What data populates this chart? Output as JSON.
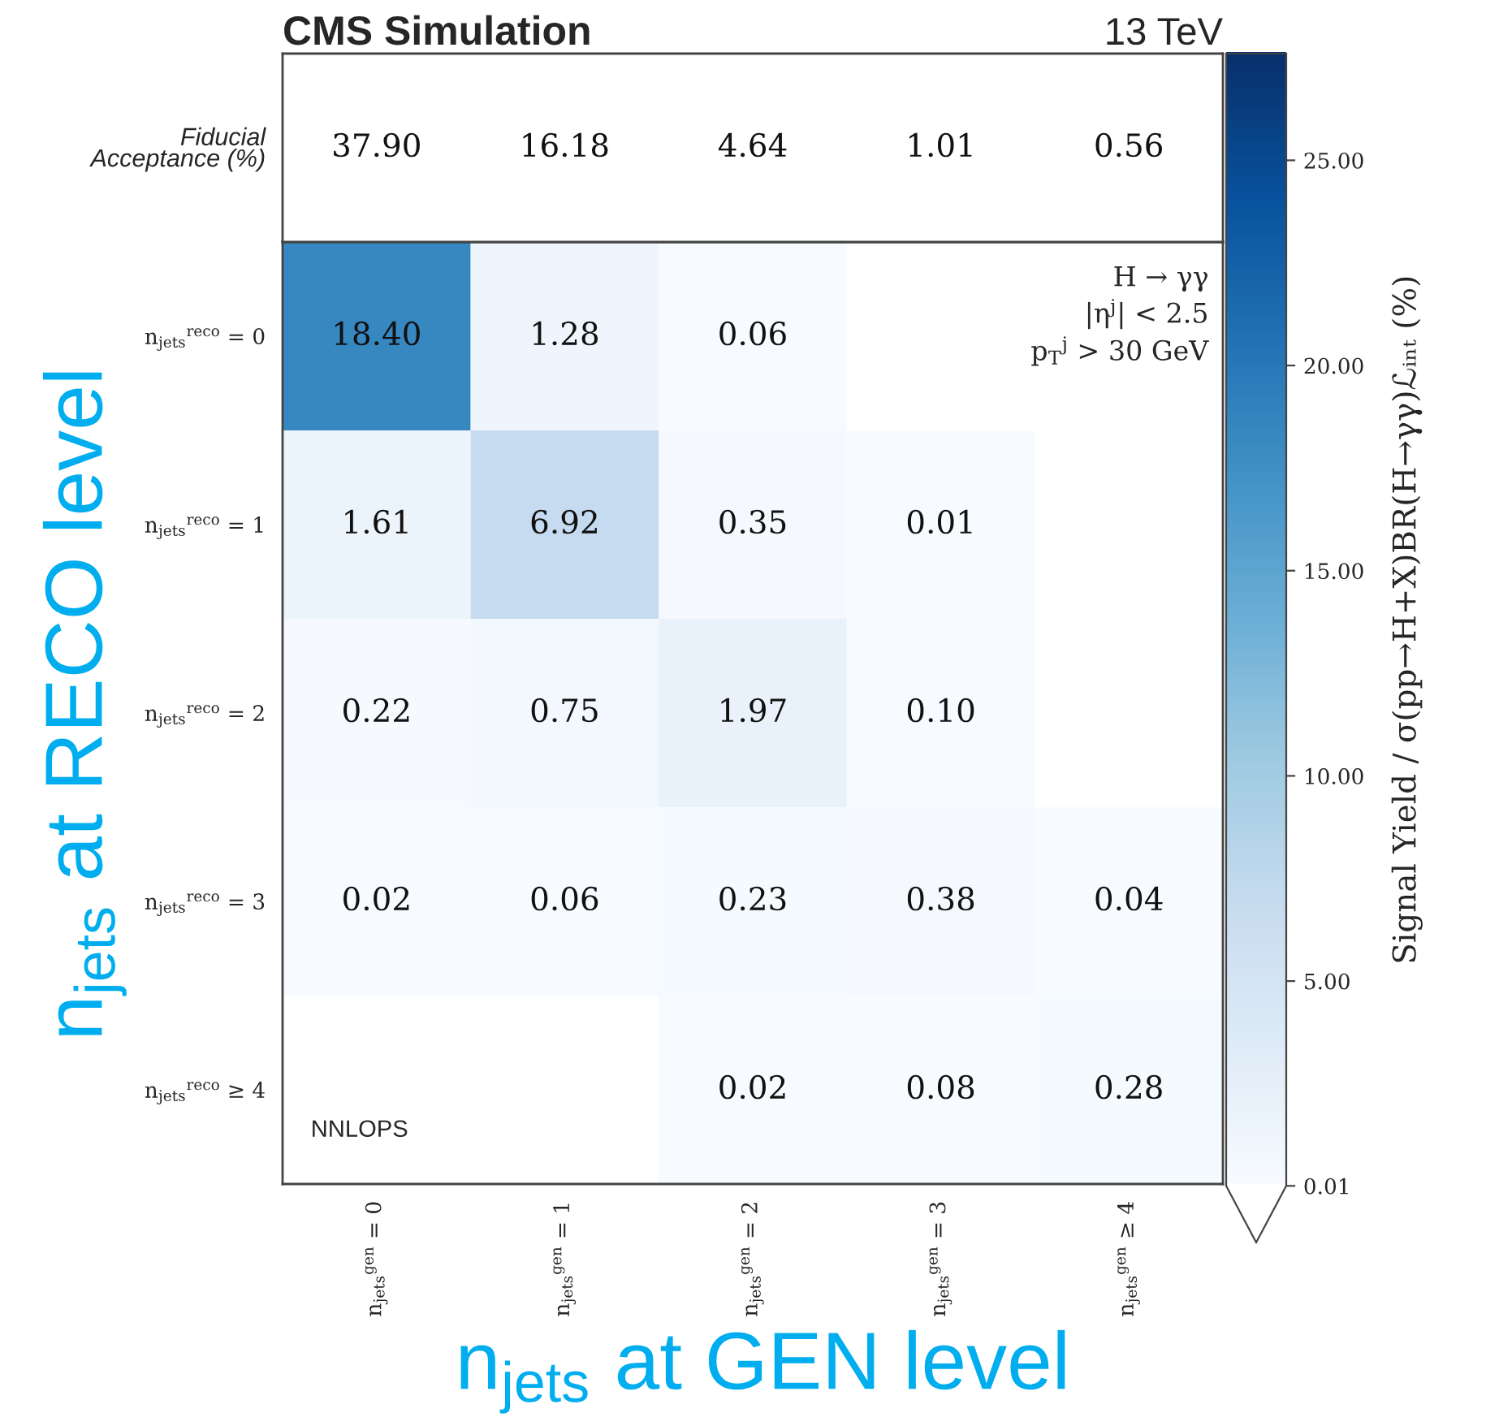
{
  "chart_data": {
    "type": "heatmap",
    "title": "CMS Simulation",
    "subtitle": "13 TeV",
    "xlabel": "n$_{jets}$ at GEN level",
    "ylabel": "n$_{jets}$ at RECO level",
    "clabel": "Signal Yield / σ(pp→H+X)BR(H→γγ)ℒᵢₙₜ (%)",
    "categories": [
      "n$_{jets}$$^{gen}$ = 0",
      "n$_{jets}$$^{gen}$ = 1",
      "n$_{jets}$$^{gen}$ = 2",
      "n$_{jets}$$^{gen}$ = 3",
      "n$_{jets}$$^{gen}$ ≥ 4"
    ],
    "y_categories": [
      "n$_{jets}$$^{reco}$ = 0",
      "n$_{jets}$$^{reco}$ = 1",
      "n$_{jets}$$^{reco}$ = 2",
      "n$_{jets}$$^{reco}$ = 3",
      "n$_{jets}$$^{reco}$ ≥ 4"
    ],
    "cells": [
      [
        18.4,
        1.28,
        0.06,
        null,
        null
      ],
      [
        1.61,
        6.92,
        0.35,
        0.01,
        null
      ],
      [
        0.22,
        0.75,
        1.97,
        0.1,
        null
      ],
      [
        0.02,
        0.06,
        0.23,
        0.38,
        0.04
      ],
      [
        null,
        null,
        0.02,
        0.08,
        0.28
      ]
    ],
    "cell_labels": [
      [
        "18.40",
        "1.28",
        "0.06",
        null,
        null
      ],
      [
        "1.61",
        "6.92",
        "0.35",
        "0.01",
        null
      ],
      [
        "0.22",
        "0.75",
        "1.97",
        "0.10",
        null
      ],
      [
        "0.02",
        "0.06",
        "0.23",
        "0.38",
        "0.04"
      ],
      [
        null,
        null,
        "0.02",
        "0.08",
        "0.28"
      ]
    ],
    "clim": [
      0.01,
      27.6
    ],
    "cticks": [
      0.01,
      {
        "value": 5,
        "label": "5.00"
      },
      {
        "value": 10,
        "label": "10.00"
      },
      {
        "value": 15,
        "label": "15.00"
      },
      {
        "value": 20,
        "label": "20.00"
      },
      {
        "value": 25,
        "label": "25.00"
      }
    ],
    "colors": [
      "#f7fbff",
      "#deebf7",
      "#c6dbef",
      "#9ecae1",
      "#6baed6",
      "#4292c6",
      "#2171b5",
      "#08519c",
      "#08306b"
    ],
    "annotations": [
      "37.90",
      "16.18",
      "4.64",
      "1.01",
      "0.56",
      "Fiducial\nAcceptance (%)",
      "H → γγ\n|η$^{j}$| < 2.5\np$_{T}$$^{j}$ > 30 GeV",
      "NNLOPS"
    ]
  }
}
